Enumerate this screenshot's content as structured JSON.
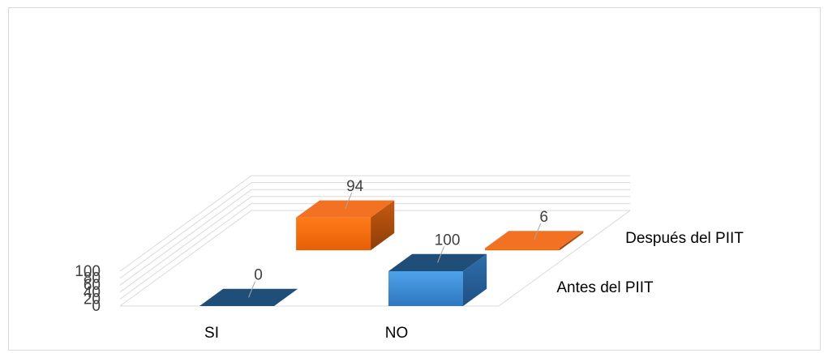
{
  "chart_data": {
    "type": "bar",
    "subtype": "3d-column",
    "categories": [
      "SI",
      "NO"
    ],
    "series": [
      {
        "name": "Antes del PIIT",
        "values": [
          0,
          100
        ],
        "color": "#2e75b6"
      },
      {
        "name": "Después del PIIT",
        "values": [
          94,
          6
        ],
        "color": "#ed7d31"
      }
    ],
    "ylim": [
      0,
      100
    ],
    "yticks": [
      "0",
      "20",
      "40",
      "60",
      "80",
      "100"
    ],
    "grid": true,
    "title": "",
    "xlabel": "",
    "ylabel": ""
  }
}
